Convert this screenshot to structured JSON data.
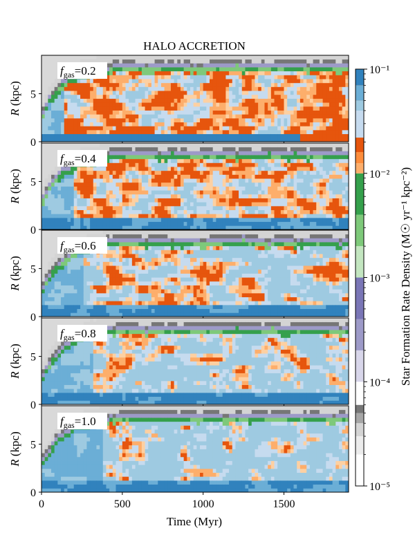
{
  "chart_data": {
    "type": "heatmap",
    "title": "HALO ACCRETION",
    "xlabel": "Time (Myr)",
    "ylabel": "R (kpc)",
    "xlim": [
      0,
      1900
    ],
    "ylim": [
      0,
      9
    ],
    "x_ticks": [
      0,
      500,
      1000,
      1500
    ],
    "x_tick_labels": [
      "0",
      "500",
      "1000",
      "1500"
    ],
    "y_ticks": [
      0,
      5
    ],
    "y_tick_labels": [
      "0",
      "5"
    ],
    "panels": [
      {
        "label_var": "f",
        "label_sub": "gas",
        "label_value": "=0.2",
        "fgas": 0.2
      },
      {
        "label_var": "f",
        "label_sub": "gas",
        "label_value": "=0.4",
        "fgas": 0.4
      },
      {
        "label_var": "f",
        "label_sub": "gas",
        "label_value": "=0.6",
        "fgas": 0.6
      },
      {
        "label_var": "f",
        "label_sub": "gas",
        "label_value": "=0.8",
        "fgas": 0.8
      },
      {
        "label_var": "f",
        "label_sub": "gas",
        "label_value": "=1.0",
        "fgas": 1.0
      }
    ],
    "colorbar": {
      "label": "Star Formation Rate Density (M☉ yr⁻¹ kpc⁻²)",
      "scale": "log",
      "range": [
        1e-05,
        0.1
      ],
      "tick_values": [
        1e-05,
        0.0001,
        0.001,
        0.01,
        0.1
      ],
      "tick_labels": [
        "10⁻⁵",
        "10⁻⁴",
        "10⁻³",
        "10⁻²",
        "10⁻¹"
      ],
      "levels": [
        {
          "from": 1e-05,
          "to": 2e-05,
          "color": "#ffffff"
        },
        {
          "from": 2e-05,
          "to": 3e-05,
          "color": "#ececec"
        },
        {
          "from": 3e-05,
          "to": 4e-05,
          "color": "#d4d4d4"
        },
        {
          "from": 4e-05,
          "to": 5e-05,
          "color": "#a6a6a6"
        },
        {
          "from": 5e-05,
          "to": 6e-05,
          "color": "#767676"
        },
        {
          "from": 6e-05,
          "to": 0.0001,
          "color": "#ffffff"
        },
        {
          "from": 0.0001,
          "to": 0.0002,
          "color": "#d8d6ea"
        },
        {
          "from": 0.0002,
          "to": 0.0004,
          "color": "#9d9ac8"
        },
        {
          "from": 0.0004,
          "to": 0.001,
          "color": "#7a76b6"
        },
        {
          "from": 0.001,
          "to": 0.002,
          "color": "#c3e6c0"
        },
        {
          "from": 0.002,
          "to": 0.004,
          "color": "#7ec97a"
        },
        {
          "from": 0.004,
          "to": 0.01,
          "color": "#35a04c"
        },
        {
          "from": 0.01,
          "to": 0.02,
          "color": "#fdd0a2"
        },
        {
          "from": 0.02,
          "to": 0.04,
          "color": "#fdae6b"
        },
        {
          "from": 0.04,
          "to": 0.1,
          "color": "#e6550d"
        },
        {
          "from": 0.1,
          "to": 1.0,
          "color": "#9ecae1"
        }
      ],
      "high_colors": [
        "#c6dbef",
        "#9ecae1",
        "#6baed6",
        "#3182bd"
      ],
      "empty_color": "#d9d9d9"
    }
  }
}
